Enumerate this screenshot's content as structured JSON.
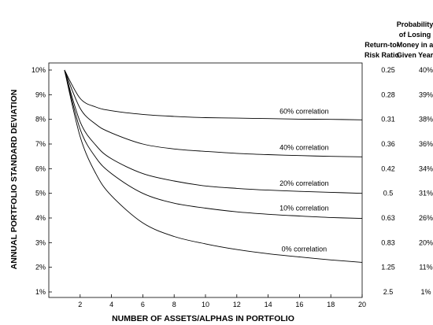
{
  "chart_data": {
    "type": "line",
    "xlabel": "NUMBER OF ASSETS/ALPHAS IN PORTFOLIO",
    "ylabel": "ANNUAL PORTFOLIO STANDARD DEVIATION",
    "xlim": [
      0,
      20
    ],
    "ylim": [
      1,
      10
    ],
    "x_ticks": [
      2,
      4,
      6,
      8,
      10,
      12,
      14,
      16,
      18,
      20
    ],
    "y_ticks": [
      "1%",
      "2%",
      "3%",
      "4%",
      "5%",
      "6%",
      "7%",
      "8%",
      "9%",
      "10%"
    ],
    "y_tick_values": [
      1,
      2,
      3,
      4,
      5,
      6,
      7,
      8,
      9,
      10
    ],
    "grid": false,
    "legend": "labels beside curves",
    "series": [
      {
        "name": "60% correlation",
        "x": [
          1,
          2,
          3,
          4,
          6,
          8,
          10,
          12,
          14,
          16,
          18,
          20
        ],
        "values": [
          10,
          8.85,
          8.5,
          8.35,
          8.2,
          8.12,
          8.07,
          8.05,
          8.03,
          8.01,
          8.0,
          7.98
        ]
      },
      {
        "name": "40% correlation",
        "x": [
          1,
          2,
          3,
          4,
          6,
          8,
          10,
          12,
          14,
          16,
          18,
          20
        ],
        "values": [
          10,
          8.45,
          7.8,
          7.45,
          7.0,
          6.8,
          6.7,
          6.62,
          6.57,
          6.53,
          6.5,
          6.48
        ]
      },
      {
        "name": "20% correlation",
        "x": [
          1,
          2,
          3,
          4,
          6,
          8,
          10,
          12,
          14,
          16,
          18,
          20
        ],
        "values": [
          10,
          7.9,
          6.95,
          6.4,
          5.8,
          5.5,
          5.3,
          5.2,
          5.13,
          5.08,
          5.04,
          5.0
        ]
      },
      {
        "name": "10% correlation",
        "x": [
          1,
          2,
          3,
          4,
          6,
          8,
          10,
          12,
          14,
          16,
          18,
          20
        ],
        "values": [
          10,
          7.6,
          6.45,
          5.8,
          5.0,
          4.6,
          4.4,
          4.25,
          4.15,
          4.08,
          4.02,
          3.98
        ]
      },
      {
        "name": "0% correlation",
        "x": [
          1,
          2,
          3,
          4,
          6,
          8,
          10,
          12,
          14,
          16,
          18,
          20
        ],
        "values": [
          10,
          7.3,
          5.8,
          4.9,
          3.8,
          3.25,
          2.95,
          2.72,
          2.55,
          2.42,
          2.3,
          2.2
        ]
      }
    ],
    "side_table": {
      "headers": [
        [
          "Return-to-",
          "Risk Ratio"
        ],
        [
          "Probability",
          "of Losing",
          "Money in a",
          "Given Year"
        ]
      ],
      "rows": [
        {
          "level": 10,
          "ratio": "0.25",
          "prob": "40%"
        },
        {
          "level": 9,
          "ratio": "0.28",
          "prob": "39%"
        },
        {
          "level": 8,
          "ratio": "0.31",
          "prob": "38%"
        },
        {
          "level": 7,
          "ratio": "0.36",
          "prob": "36%"
        },
        {
          "level": 6,
          "ratio": "0.42",
          "prob": "34%"
        },
        {
          "level": 5,
          "ratio": "0.5",
          "prob": "31%"
        },
        {
          "level": 4,
          "ratio": "0.63",
          "prob": "26%"
        },
        {
          "level": 3,
          "ratio": "0.83",
          "prob": "20%"
        },
        {
          "level": 2,
          "ratio": "1.25",
          "prob": "11%"
        },
        {
          "level": 1,
          "ratio": "2.5",
          "prob": "1%"
        }
      ]
    }
  }
}
